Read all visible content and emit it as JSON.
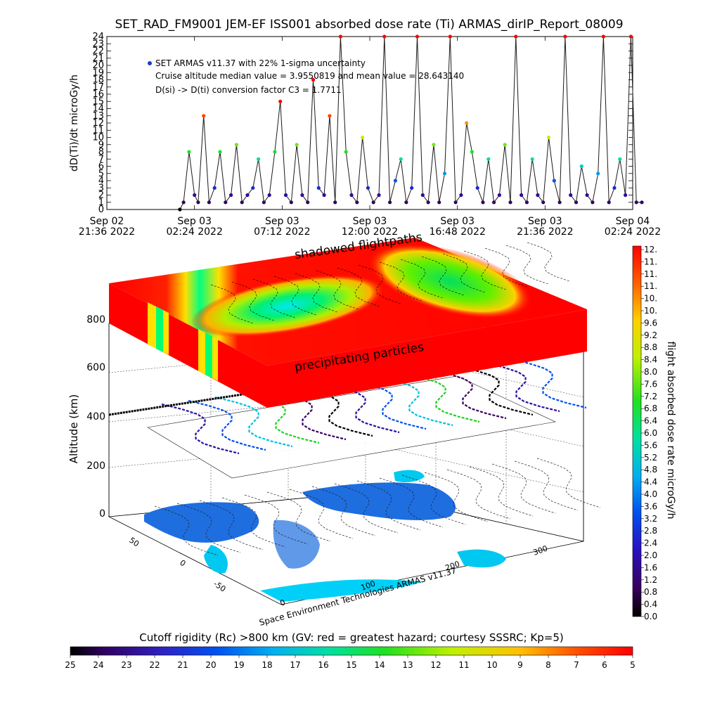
{
  "title": "SET_RAD_FM9001  JEM-EF ISS001 absorbed dose rate (Ti) ARMAS_dirIP_Report_08009",
  "chart_data": [
    {
      "type": "line",
      "title": "SET_RAD_FM9001  JEM-EF ISS001 absorbed dose rate (Ti) ARMAS_dirIP_Report_08009",
      "ylabel": "dD(Ti)/dt microGy/h",
      "ylim": [
        0,
        24
      ],
      "yticks": [
        "0",
        "1",
        "2",
        "3",
        "4",
        "5",
        "6",
        "7",
        "8",
        "9",
        "10",
        "11",
        "12",
        "13",
        "14",
        "15",
        "16",
        "17",
        "18",
        "19",
        "20",
        "21",
        "22",
        "23",
        "24"
      ],
      "xticks": [
        {
          "top": "Sep 02",
          "bottom": "21:36 2022"
        },
        {
          "top": "Sep 03",
          "bottom": "02:24 2022"
        },
        {
          "top": "Sep 03",
          "bottom": "07:12 2022"
        },
        {
          "top": "Sep 03",
          "bottom": "12:00 2022"
        },
        {
          "top": "Sep 03",
          "bottom": "16:48 2022"
        },
        {
          "top": "Sep 03",
          "bottom": "21:36 2022"
        },
        {
          "top": "Sep 04",
          "bottom": "02:24 2022"
        }
      ],
      "legend": {
        "placement": "top-left",
        "entries": [
          "SET ARMAS v11.37 with 22% 1-sigma uncertainty",
          "Cruise altitude median value = 3.9550819 and mean value = 28.643140",
          "D(si) -> D(ti) conversion factor C3 = 1.7711"
        ]
      },
      "series": [
        {
          "color": "#1a1a1a",
          "x_hours_from_start": [
            4.0,
            4.2,
            4.5,
            4.8,
            5.0,
            5.3,
            5.6,
            5.9,
            6.2,
            6.5,
            6.8,
            7.1,
            7.4,
            7.7,
            8.0,
            8.3,
            8.6,
            8.9,
            9.2,
            9.5,
            9.8,
            10.1,
            10.4,
            10.7,
            11.0,
            11.3,
            11.6,
            11.9,
            12.2,
            12.5,
            12.8,
            13.1,
            13.4,
            13.7,
            14.0,
            14.3,
            14.6,
            14.9,
            15.2,
            15.5,
            15.8,
            16.1,
            16.4,
            16.7,
            17.0,
            17.3,
            17.6,
            17.9,
            18.2,
            18.5,
            18.8,
            19.1,
            19.4,
            19.7,
            20.0,
            20.3,
            20.6,
            20.9,
            21.2,
            21.5,
            21.8,
            22.1,
            22.4,
            22.7,
            23.0,
            23.3,
            23.6,
            23.9,
            24.2,
            24.5,
            24.8,
            25.1,
            25.4,
            25.7,
            26.0,
            26.3,
            26.6,
            26.9,
            27.2,
            27.5,
            27.8,
            28.1,
            28.4,
            28.7,
            29.0,
            29.3
          ],
          "values": [
            0,
            1,
            8,
            2,
            1,
            13,
            1,
            3,
            8,
            1,
            2,
            9,
            1,
            2,
            3,
            7,
            1,
            2,
            8,
            15,
            2,
            1,
            9,
            2,
            1,
            18,
            3,
            2,
            13,
            1,
            24,
            8,
            2,
            1,
            10,
            3,
            1,
            2,
            24,
            1,
            4,
            7,
            1,
            3,
            24,
            2,
            1,
            9,
            1,
            5,
            24,
            1,
            2,
            12,
            8,
            3,
            1,
            7,
            1,
            2,
            9,
            1,
            24,
            2,
            1,
            7,
            2,
            1,
            10,
            4,
            1,
            24,
            2,
            1,
            6,
            2,
            1,
            5,
            24,
            1,
            3,
            7,
            2,
            24,
            1,
            1
          ]
        }
      ]
    },
    {
      "type": "heatmap",
      "ylabel": "Altitude (km)",
      "zticks": [
        "0",
        "200",
        "400",
        "600",
        "800"
      ],
      "lon_ticks": [
        "0",
        "100",
        "200",
        "300"
      ],
      "lat_ticks": [
        "50",
        "0",
        "-50"
      ],
      "annotations": [
        "shadowed flightpaths",
        "precipitating particles"
      ],
      "credit": "Space Environment Technologies ARMAS v11.37",
      "colorbar_right": {
        "label": "flight absorbed dose rate microGy/h",
        "ticks": [
          "0.0",
          "0.4",
          "0.8",
          "1.2",
          "1.6",
          "2.0",
          "2.4",
          "2.8",
          "3.2",
          "3.6",
          "4.0",
          "4.4",
          "4.8",
          "5.2",
          "5.6",
          "6.0",
          "6.4",
          "6.8",
          "7.2",
          "7.6",
          "8.0",
          "8.4",
          "8.8",
          "9.2",
          "9.6",
          "10.",
          "10.",
          "11.",
          "11.",
          "11.",
          "12."
        ]
      },
      "colorbar_bottom": {
        "label": "Cutoff rigidity (Rc) >800 km (GV: red = greatest hazard; courtesy SSSRC; Kp=5)",
        "ticks": [
          "25",
          "24",
          "23",
          "22",
          "21",
          "20",
          "19",
          "18",
          "17",
          "16",
          "15",
          "14",
          "13",
          "12",
          "11",
          "10",
          "9",
          "8",
          "7",
          "6",
          "5"
        ]
      }
    }
  ]
}
